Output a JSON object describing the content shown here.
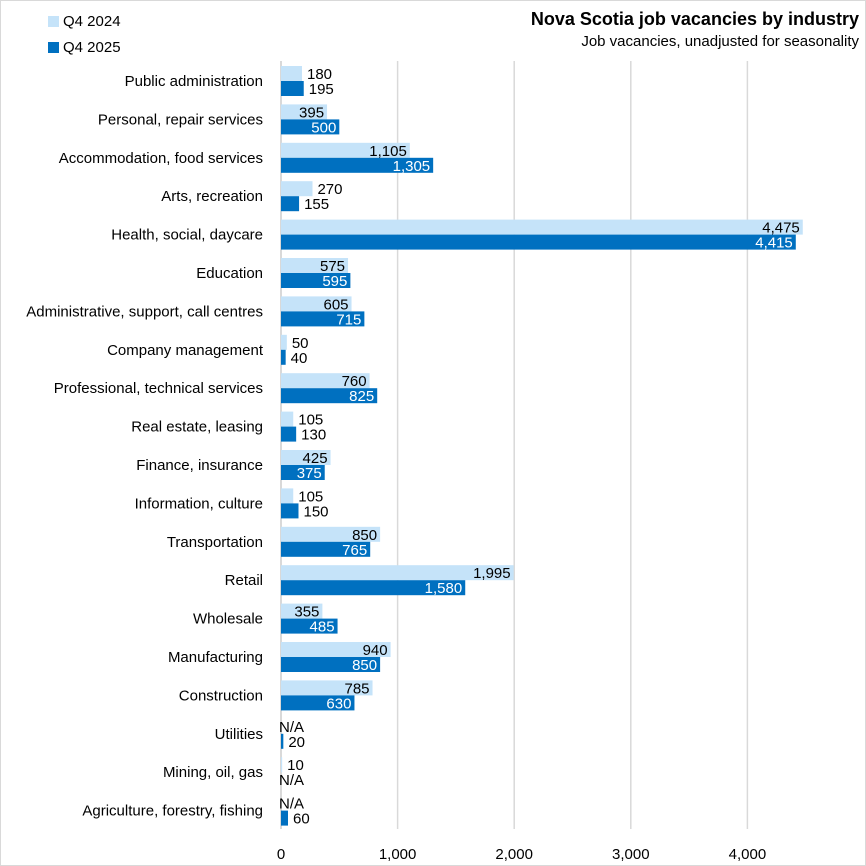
{
  "chart_data": {
    "type": "bar",
    "orientation": "horizontal",
    "title": "Nova Scotia job vacancies by industry",
    "subtitle": "Job vacancies, unadjusted for seasonality",
    "categories": [
      "Public administration",
      "Personal, repair services",
      "Accommodation, food services",
      "Arts, recreation",
      "Health, social, daycare",
      "Education",
      "Administrative, support, call centres",
      "Company management",
      "Professional, technical services",
      "Real estate, leasing",
      "Finance, insurance",
      "Information, culture",
      "Transportation",
      "Retail",
      "Wholesale",
      "Manufacturing",
      "Construction",
      "Utilities",
      "Mining, oil, gas",
      "Agriculture, forestry, fishing"
    ],
    "series": [
      {
        "name": "Q4 2024",
        "color": "#c5e3f9",
        "values": [
          180,
          395,
          1105,
          270,
          4475,
          575,
          605,
          50,
          760,
          105,
          425,
          105,
          850,
          1995,
          355,
          940,
          785,
          null,
          10,
          null
        ],
        "labels": [
          "180",
          "395",
          "1,105",
          "270",
          "4,475",
          "575",
          "605",
          "50",
          "760",
          "105",
          "425",
          "105",
          "850",
          "1,995",
          "355",
          "940",
          "785",
          "N/A",
          "10",
          "N/A"
        ]
      },
      {
        "name": "Q4 2025",
        "color": "#0070c0",
        "values": [
          195,
          500,
          1305,
          155,
          4415,
          595,
          715,
          40,
          825,
          130,
          375,
          150,
          765,
          1580,
          485,
          850,
          630,
          20,
          null,
          60
        ],
        "labels": [
          "195",
          "500",
          "1,305",
          "155",
          "4,415",
          "595",
          "715",
          "40",
          "825",
          "130",
          "375",
          "150",
          "765",
          "1,580",
          "485",
          "850",
          "630",
          "20",
          "N/A",
          "60"
        ]
      }
    ],
    "xlim": [
      0,
      4500
    ],
    "xticks": [
      0,
      1000,
      2000,
      3000,
      4000
    ],
    "xtick_labels": [
      "0",
      "1,000",
      "2,000",
      "3,000",
      "4,000"
    ],
    "grid": "vertical",
    "legend": "top-left"
  }
}
